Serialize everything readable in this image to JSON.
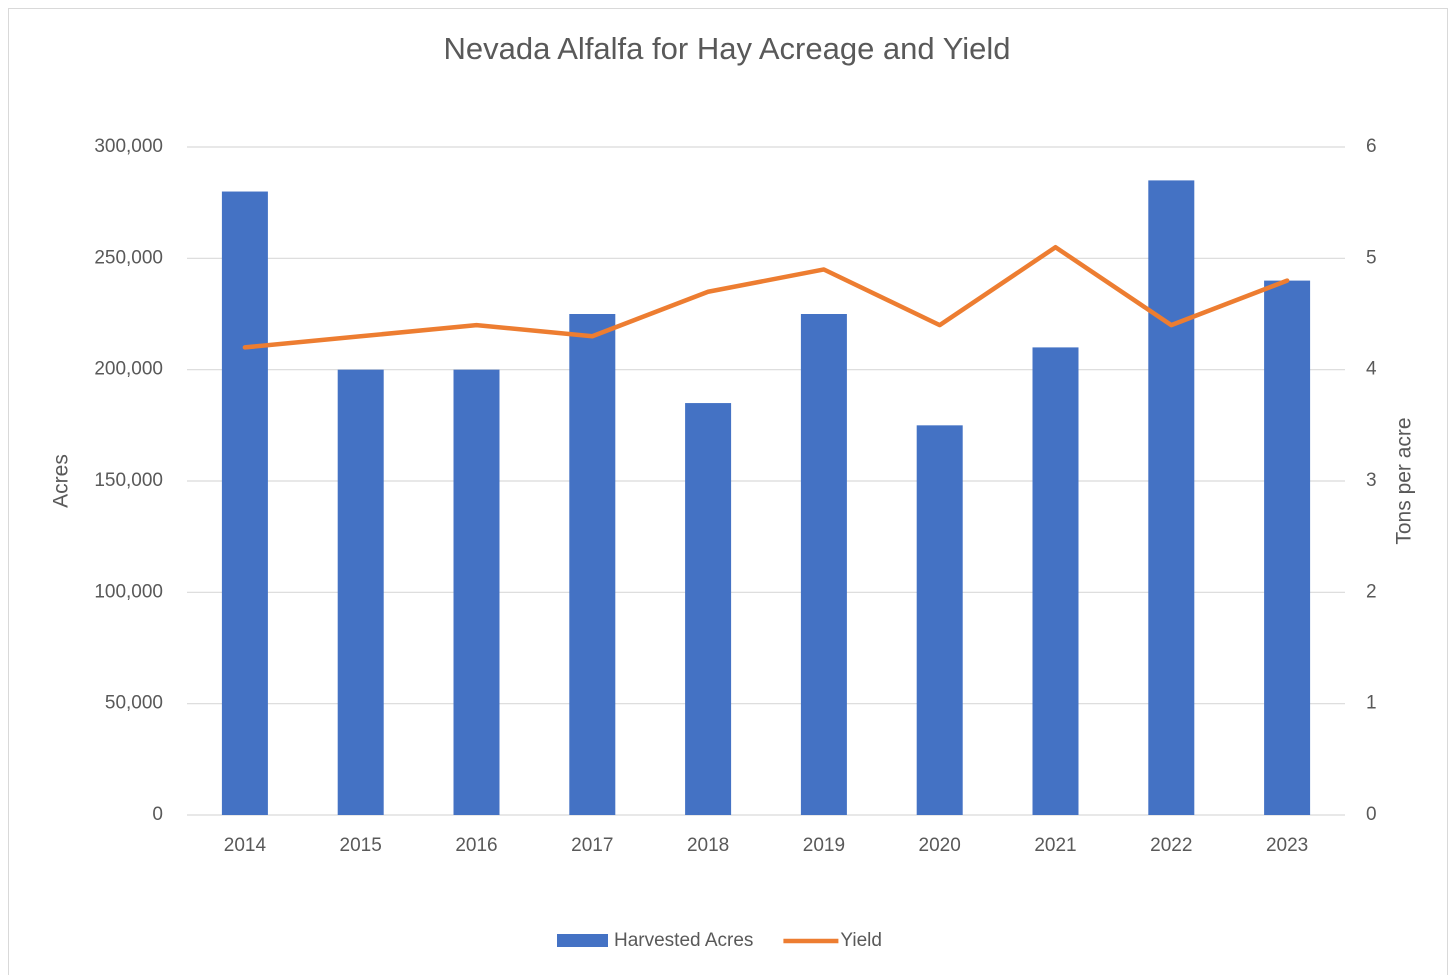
{
  "chart_data": {
    "type": "combo",
    "title": "Nevada Alfalfa for Hay Acreage and Yield",
    "y_label": "Acres",
    "y2_label": "Tons per acre",
    "categories": [
      "2014",
      "2015",
      "2016",
      "2017",
      "2018",
      "2019",
      "2020",
      "2021",
      "2022",
      "2023"
    ],
    "series": [
      {
        "name": "Harvested Acres",
        "type": "bar",
        "color": "#4472c4",
        "axis": "y",
        "values": [
          280000,
          200000,
          200000,
          225000,
          185000,
          225000,
          175000,
          210000,
          285000,
          240000
        ]
      },
      {
        "name": "Yield",
        "type": "line",
        "color": "#ed7d31",
        "axis": "y2",
        "values": [
          4.2,
          4.3,
          4.4,
          4.3,
          4.7,
          4.9,
          4.4,
          5.1,
          4.4,
          4.8
        ]
      }
    ],
    "ylim": [
      0,
      300000
    ],
    "yticks": [
      0,
      {
        "value": 50000,
        "label": "50,000"
      },
      {
        "value": 100000,
        "label": "100,000"
      },
      {
        "value": 150000,
        "label": "150,000"
      },
      {
        "value": 200000,
        "label": "200,000"
      },
      {
        "value": 250000,
        "label": "250,000"
      },
      {
        "value": 300000,
        "label": "300,000"
      }
    ],
    "y2lim": [
      0,
      6
    ],
    "y2ticks": [
      0,
      1,
      2,
      3,
      4,
      5,
      6
    ],
    "grid": true,
    "legend": "bottom"
  }
}
